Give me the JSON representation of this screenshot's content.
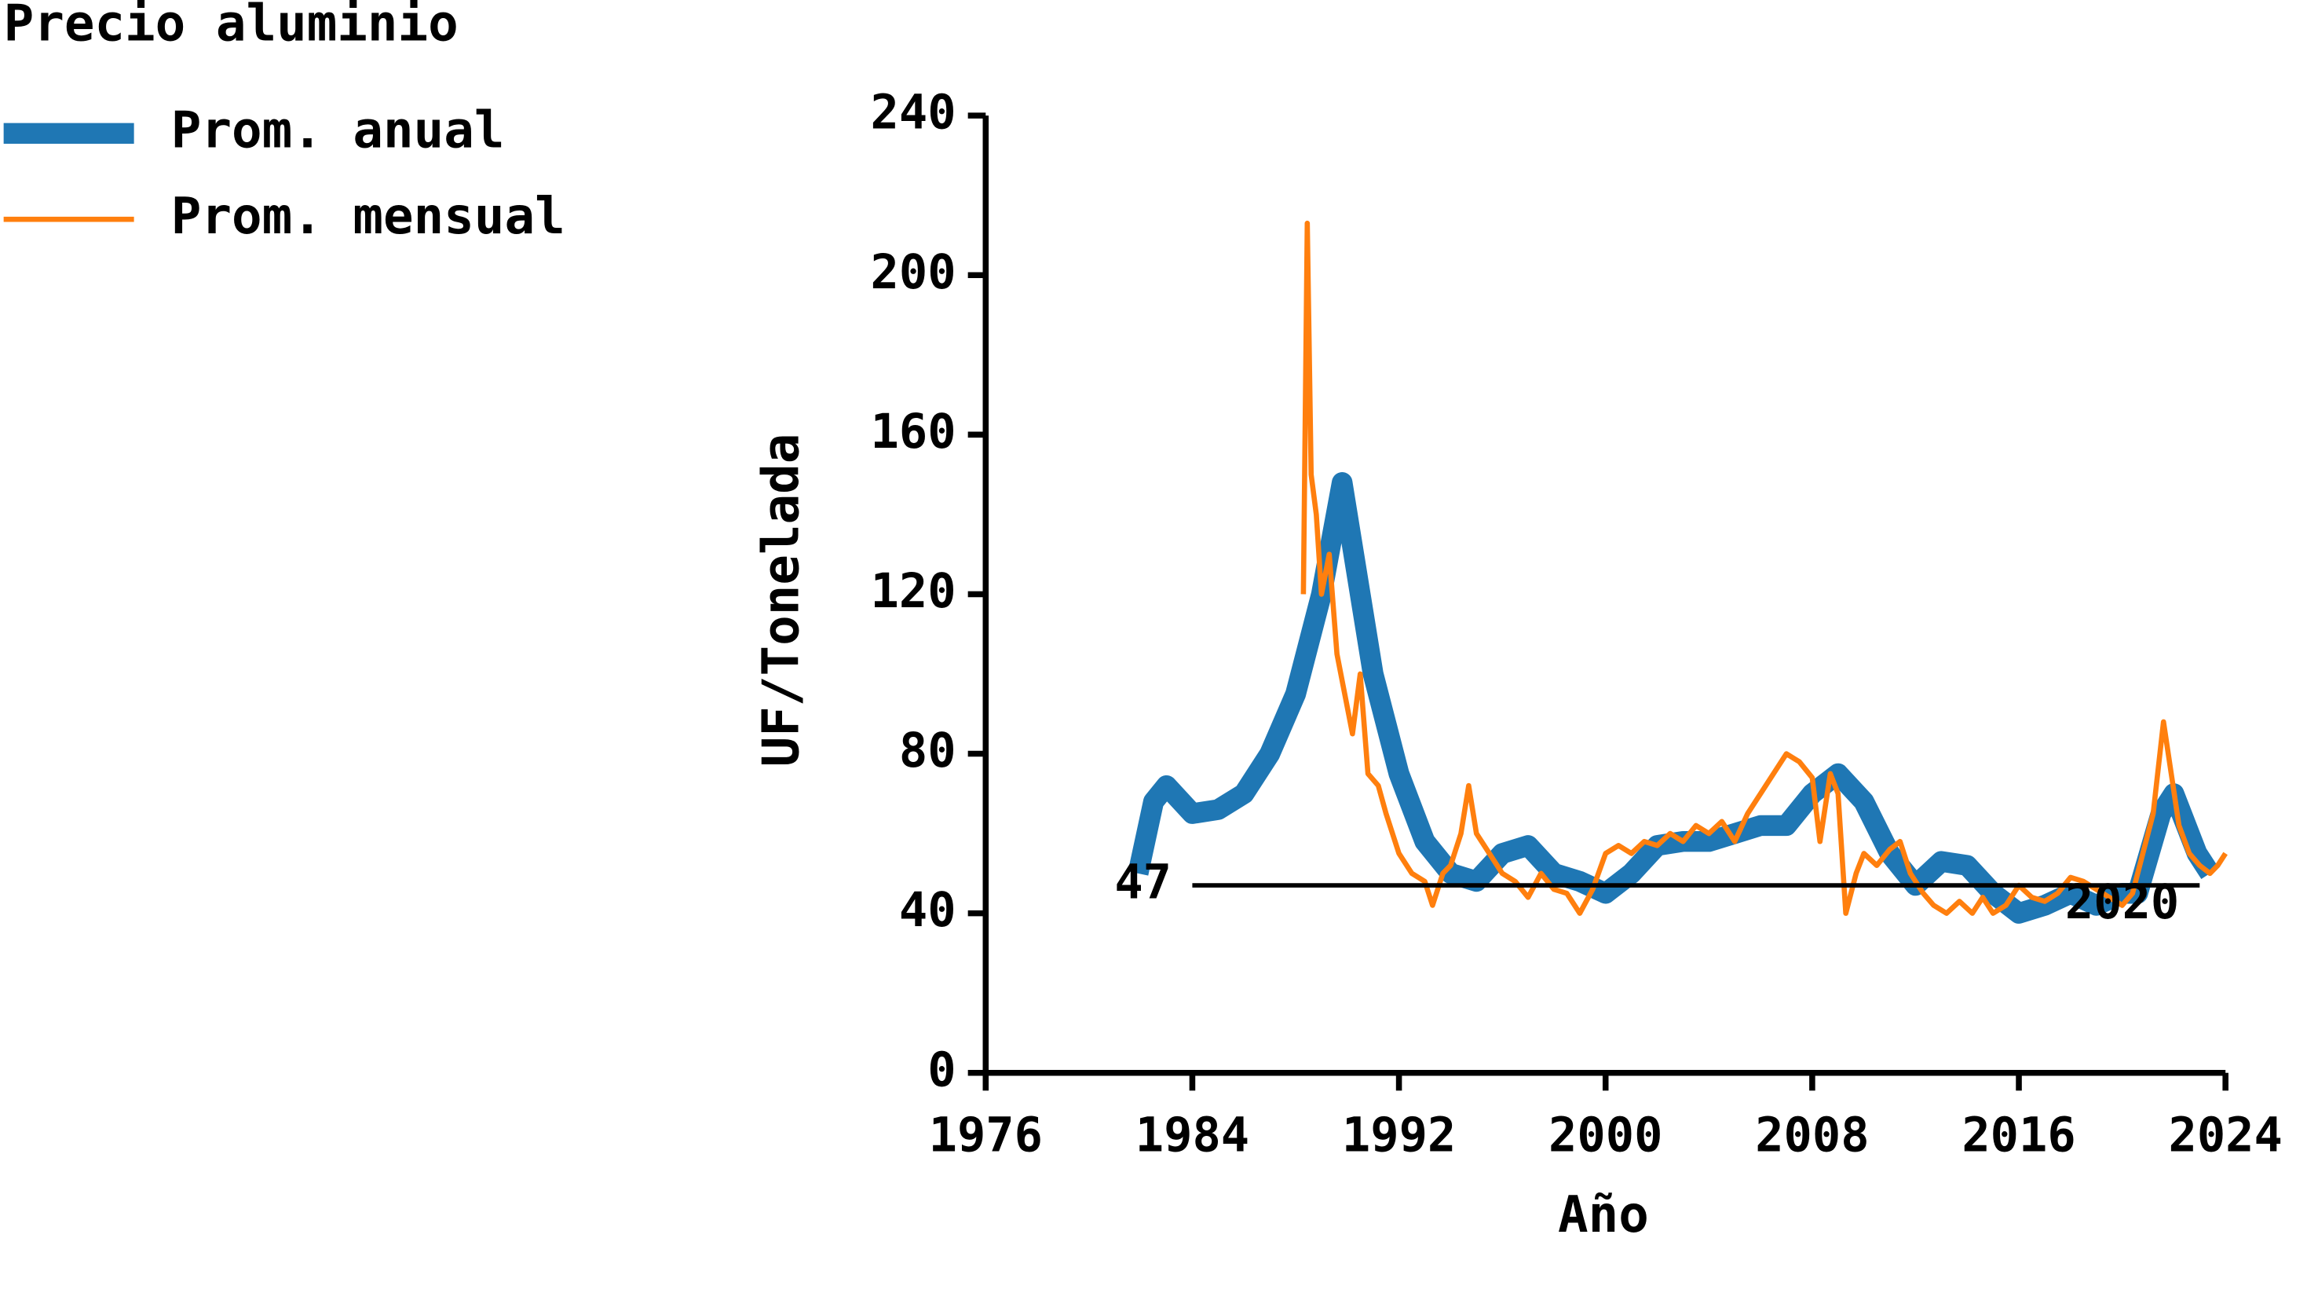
{
  "chart_data": {
    "type": "line",
    "title": "Precio aluminio",
    "xlabel": "Año",
    "ylabel": "UF/Tonelada",
    "xlim": [
      1976,
      2024
    ],
    "xticks": [
      1976,
      1984,
      1992,
      2000,
      2008,
      2016,
      2024
    ],
    "ylim": [
      0,
      240
    ],
    "yticks": [
      0,
      40,
      80,
      120,
      160,
      200,
      240
    ],
    "legend": "upper left",
    "series": [
      {
        "name": "Prom. anual",
        "color": "#1f77b4",
        "x": [
          1981.9,
          1982.5,
          1983,
          1984,
          1985,
          1986,
          1987,
          1988,
          1989,
          1989.8,
          1990.5,
          1991,
          1992,
          1993,
          1994,
          1995,
          1996,
          1997,
          1998,
          1999,
          2000,
          2001,
          2002,
          2003,
          2004,
          2005,
          2006,
          2007,
          2008,
          2009,
          2010,
          2011,
          2012,
          2013,
          2014,
          2015,
          2016,
          2017,
          2018,
          2019,
          2020,
          2020.6,
          2021.5,
          2022,
          2022.9,
          2023.4
        ],
        "values": [
          50,
          68,
          72,
          65,
          66,
          70,
          80,
          95,
          120,
          148,
          120,
          100,
          75,
          58,
          50,
          48,
          55,
          57,
          50,
          48,
          45,
          50,
          57,
          58,
          58,
          60,
          62,
          62,
          70,
          75,
          68,
          55,
          47,
          53,
          52,
          45,
          40,
          42,
          45,
          42,
          45,
          45,
          65,
          70,
          55,
          50
        ]
      },
      {
        "name": "Prom. mensual",
        "color": "#ff7f0e",
        "x": [
          1988.3,
          1988.45,
          1988.6,
          1988.8,
          1989.0,
          1989.3,
          1989.6,
          1989.9,
          1990.2,
          1990.5,
          1990.8,
          1991.2,
          1991.5,
          1992,
          1992.5,
          1993,
          1993.3,
          1993.7,
          1994,
          1994.4,
          1994.7,
          1995,
          1995.5,
          1996,
          1996.5,
          1997,
          1997.5,
          1998,
          1998.5,
          1999,
          1999.5,
          2000,
          2000.5,
          2001,
          2001.5,
          2002,
          2002.5,
          2003,
          2003.5,
          2004,
          2004.5,
          2005,
          2005.5,
          2006,
          2006.5,
          2007,
          2007.5,
          2008,
          2008.3,
          2008.7,
          2009,
          2009.3,
          2009.7,
          2010,
          2010.5,
          2011,
          2011.4,
          2011.8,
          2012.3,
          2012.7,
          2013.2,
          2013.7,
          2014.2,
          2014.6,
          2015,
          2015.5,
          2016,
          2016.5,
          2017,
          2017.5,
          2018,
          2018.5,
          2019,
          2019.5,
          2020,
          2020.4,
          2020.8,
          2021.2,
          2021.6,
          2021.9,
          2022.2,
          2022.6,
          2023,
          2023.4,
          2023.7,
          2024
        ],
        "values": [
          120,
          213,
          150,
          140,
          120,
          130,
          105,
          95,
          85,
          100,
          75,
          72,
          65,
          55,
          50,
          48,
          42,
          50,
          52,
          60,
          72,
          60,
          55,
          50,
          48,
          44,
          50,
          46,
          45,
          40,
          46,
          55,
          57,
          55,
          58,
          57,
          60,
          58,
          62,
          60,
          63,
          58,
          65,
          70,
          75,
          80,
          78,
          74,
          58,
          75,
          70,
          40,
          50,
          55,
          52,
          56,
          58,
          50,
          45,
          42,
          40,
          43,
          40,
          44,
          40,
          42,
          47,
          44,
          43,
          45,
          49,
          48,
          46,
          44,
          42,
          45,
          55,
          65,
          88,
          75,
          62,
          55,
          52,
          50,
          52,
          55
        ]
      }
    ],
    "annotations": [
      {
        "text": "47",
        "y": 47,
        "x": [
          1984,
          2023
        ]
      },
      {
        "text": "2020",
        "x": 2020,
        "y": 42
      }
    ]
  }
}
